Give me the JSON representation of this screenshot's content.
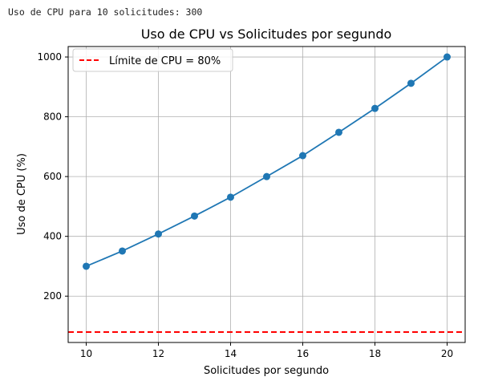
{
  "console_output": "Uso de CPU para 10 solicitudes: 300",
  "chart_data": {
    "type": "line",
    "title": "Uso de CPU vs Solicitudes por segundo",
    "xlabel": "Solicitudes por segundo",
    "ylabel": "Uso de CPU (%)",
    "x": [
      10,
      11,
      12,
      13,
      14,
      15,
      16,
      17,
      18,
      19,
      20
    ],
    "series": [
      {
        "values": [
          300,
          351,
          408,
          468,
          531,
          600,
          670,
          748,
          828,
          912,
          1000
        ],
        "color": "#1f77b4",
        "marker": "circle"
      }
    ],
    "reference_line": {
      "label": "Límite de CPU = 80%",
      "y": 80,
      "color": "#ff0000",
      "style": "dashed"
    },
    "xlim": [
      9.5,
      20.5
    ],
    "ylim": [
      45,
      1035
    ],
    "xticks": [
      10,
      12,
      14,
      16,
      18,
      20
    ],
    "yticks": [
      200,
      400,
      600,
      800,
      1000
    ],
    "grid": true,
    "legend_position": "top-left"
  }
}
